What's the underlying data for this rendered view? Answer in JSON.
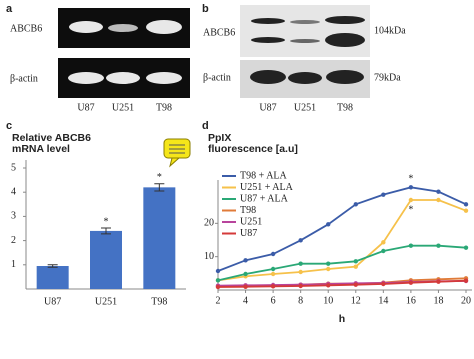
{
  "blots": {
    "a": {
      "label": "a",
      "rows": [
        "ABCB6",
        "β-actin"
      ],
      "lanes": [
        "U87",
        "U251",
        "T98"
      ]
    },
    "b": {
      "label": "b",
      "rows": [
        "ABCB6",
        "β-actin"
      ],
      "lanes": [
        "U87",
        "U251",
        "T98"
      ],
      "markers": [
        "104kDa",
        "79kDa"
      ]
    }
  },
  "chart_data": [
    {
      "type": "bar",
      "label": "c",
      "title": [
        "Relative ABCB6",
        "mRNA level"
      ],
      "categories": [
        "U87",
        "U251",
        "T98"
      ],
      "values": [
        0.95,
        2.4,
        4.2
      ],
      "errors": [
        0.05,
        0.12,
        0.15
      ],
      "annotations": [
        null,
        "*",
        "*"
      ],
      "color": "#4472c4",
      "ylim": [
        0,
        5
      ],
      "yticks": [
        1,
        2,
        3,
        4,
        5
      ]
    },
    {
      "type": "line",
      "label": "d",
      "title": [
        "PpIX",
        "fluorescence [a.u]"
      ],
      "x_label": "h",
      "x": [
        2,
        4,
        6,
        8,
        10,
        12,
        14,
        16,
        18,
        20
      ],
      "xlim": [
        2,
        20
      ],
      "xticks": [
        2,
        4,
        6,
        8,
        10,
        12,
        14,
        16,
        18,
        20
      ],
      "ylim": [
        0,
        33
      ],
      "yticks": [
        10,
        20
      ],
      "legend": "upper left",
      "annotations": [
        "*",
        "*"
      ],
      "series": [
        {
          "name": "T98 + ALA",
          "color": "#3b5ca8",
          "values": [
            5.7,
            8.9,
            10.8,
            14.9,
            19.7,
            25.7,
            28.6,
            30.8,
            29.5,
            25.7
          ]
        },
        {
          "name": "U251 + ALA",
          "color": "#f6c14a",
          "values": [
            2.9,
            4.1,
            4.8,
            5.4,
            6.3,
            7.0,
            14.3,
            27.0,
            27.0,
            23.8
          ]
        },
        {
          "name": "U87 + ALA",
          "color": "#2aa876",
          "values": [
            2.9,
            4.8,
            6.3,
            7.9,
            7.9,
            8.6,
            11.7,
            13.3,
            13.3,
            12.7
          ]
        },
        {
          "name": "T98",
          "color": "#e07b39",
          "values": [
            1.0,
            1.0,
            1.3,
            1.6,
            1.9,
            1.9,
            2.2,
            2.9,
            3.2,
            3.5
          ]
        },
        {
          "name": "U251",
          "color": "#b8449c",
          "values": [
            1.3,
            1.4,
            1.5,
            1.6,
            1.8,
            2.0,
            2.1,
            2.4,
            2.6,
            2.7
          ]
        },
        {
          "name": "U87",
          "color": "#d43a3a",
          "values": [
            0.9,
            1.0,
            1.1,
            1.2,
            1.4,
            1.6,
            1.8,
            2.2,
            2.5,
            2.8
          ]
        }
      ]
    }
  ]
}
